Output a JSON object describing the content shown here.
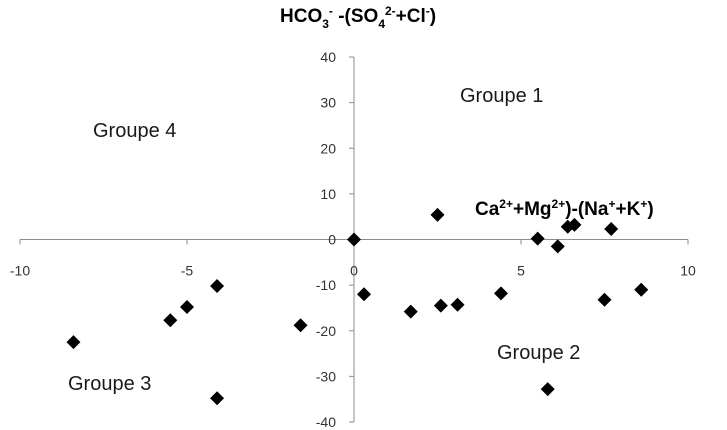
{
  "chart_data": {
    "type": "scatter",
    "x_axis_title": {
      "base": "Ca",
      "sup1": "2+",
      "mid": "+Mg",
      "sup2": "2+",
      "tail": ")-(Na",
      "sup3": "+",
      "mid2": "+K",
      "sup4": "+",
      "end": ")"
    },
    "y_axis_title": {
      "base": "HCO",
      "sub": "3",
      "sup": "-",
      "mid": " -(SO",
      "sub2": "4",
      "sup2": "2-",
      "mid2": "+Cl",
      "sup3": "-",
      "end": ")"
    },
    "xlim": [
      -10,
      10
    ],
    "ylim": [
      -40,
      40
    ],
    "x_ticks": [
      -10,
      -5,
      0,
      5,
      10
    ],
    "y_ticks": [
      40,
      30,
      20,
      10,
      0,
      -10,
      -20,
      -30,
      -40
    ],
    "x_tick_labels": [
      "-10",
      "-5",
      "0",
      "5",
      "10"
    ],
    "y_tick_labels": [
      "40",
      "30",
      "20",
      "10",
      "0",
      "-10",
      "-20",
      "-30",
      "-40"
    ],
    "marker": "diamond",
    "marker_color": "#000000",
    "grid": false,
    "annotations": [
      {
        "text": "Groupe 1",
        "quadrant": "upper-right"
      },
      {
        "text": "Groupe 2",
        "quadrant": "lower-right"
      },
      {
        "text": "Groupe 3",
        "quadrant": "lower-left"
      },
      {
        "text": "Groupe 4",
        "quadrant": "upper-left"
      }
    ],
    "points": [
      {
        "x": 0.0,
        "y": 0.0
      },
      {
        "x": 0.3,
        "y": -12.0
      },
      {
        "x": 1.7,
        "y": -15.8
      },
      {
        "x": 2.6,
        "y": -14.5
      },
      {
        "x": 3.1,
        "y": -14.3
      },
      {
        "x": 2.5,
        "y": 5.4
      },
      {
        "x": 4.4,
        "y": -11.8
      },
      {
        "x": 5.5,
        "y": 0.2
      },
      {
        "x": 5.8,
        "y": -32.8
      },
      {
        "x": 6.1,
        "y": -1.5
      },
      {
        "x": 6.4,
        "y": 2.8
      },
      {
        "x": 6.6,
        "y": 3.2
      },
      {
        "x": 7.5,
        "y": -13.2
      },
      {
        "x": 7.7,
        "y": 2.3
      },
      {
        "x": 8.6,
        "y": -11.0
      },
      {
        "x": -1.6,
        "y": -18.8
      },
      {
        "x": -4.1,
        "y": -10.2
      },
      {
        "x": -5.0,
        "y": -14.8
      },
      {
        "x": -5.5,
        "y": -17.7
      },
      {
        "x": -8.4,
        "y": -22.5
      },
      {
        "x": -4.1,
        "y": -34.8
      }
    ]
  }
}
